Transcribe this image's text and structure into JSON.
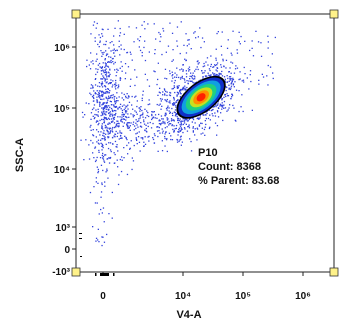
{
  "chart_data": {
    "type": "scatter",
    "title": "",
    "xlabel": "V4-A",
    "ylabel": "SSC-A",
    "x_scale": "biexponential",
    "y_scale": "biexponential",
    "x_ticks": [
      {
        "value": 0,
        "label": "0"
      },
      {
        "value": 10000,
        "label": "10⁴"
      },
      {
        "value": 100000,
        "label": "10⁵"
      },
      {
        "value": 1000000,
        "label": "10⁶"
      }
    ],
    "y_ticks": [
      {
        "value": 1000000,
        "label": "10⁶"
      },
      {
        "value": 100000,
        "label": "10⁵"
      },
      {
        "value": 10000,
        "label": "10⁴"
      },
      {
        "value": 1000,
        "label": "10³"
      },
      {
        "value": 0,
        "label": "0"
      },
      {
        "value": -1000,
        "label": "-10³"
      }
    ],
    "xlim": [
      -1000,
      3000000
    ],
    "ylim": [
      -1000,
      3000000
    ],
    "populations": [
      {
        "role": "main-cluster",
        "x_center": 20000,
        "y_center": 150000,
        "count_share": 0.84,
        "colormap": "density"
      },
      {
        "role": "low-x-scatter",
        "x_center": 0,
        "y_center": 120000,
        "count_share": 0.16,
        "colormap": "sparse-blue"
      }
    ],
    "gate": {
      "name": "P10",
      "count_label": "Count: 8368",
      "parent_label": "% Parent: 83.68"
    },
    "colors": {
      "sparse": "#3344dd",
      "density": [
        "#1030c8",
        "#10a0e0",
        "#20d080",
        "#c8e020",
        "#ff9000",
        "#ff2000"
      ],
      "gate_outline": "#000000",
      "handle_fill": "#fff28a"
    },
    "grid": false
  }
}
